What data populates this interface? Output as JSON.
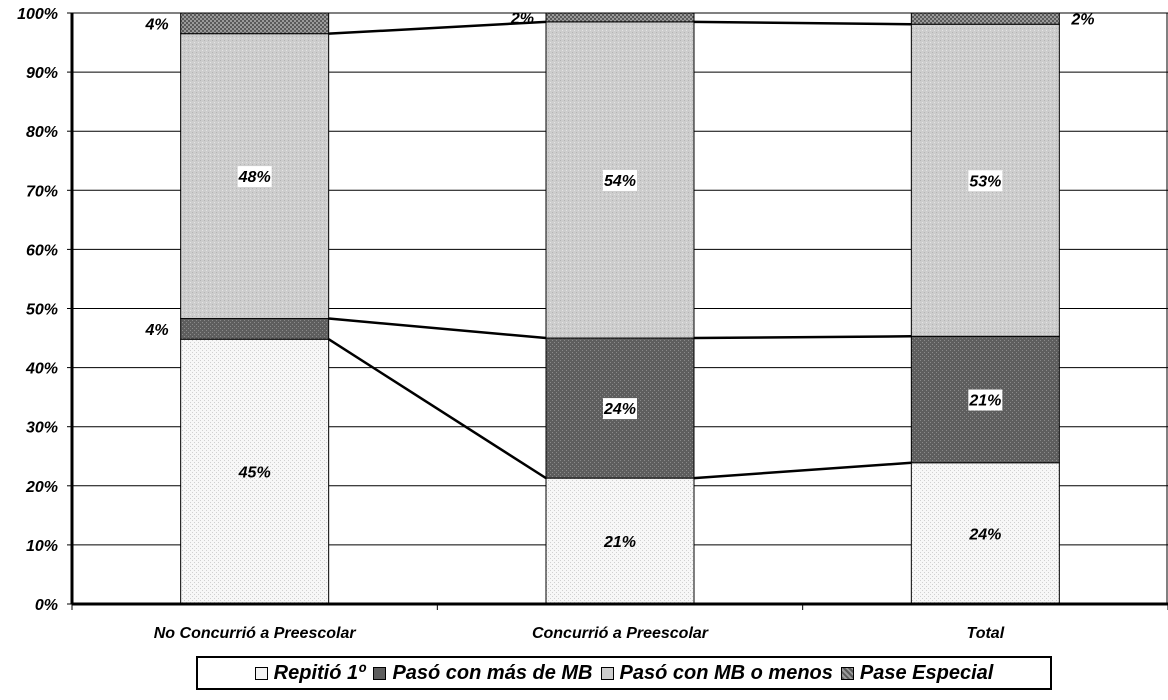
{
  "chart_data": {
    "type": "bar",
    "stacked": true,
    "percent_stacked": true,
    "title": "",
    "xlabel": "",
    "ylabel": "",
    "ylim": [
      0,
      100
    ],
    "yticks": [
      "0%",
      "10%",
      "20%",
      "30%",
      "40%",
      "50%",
      "60%",
      "70%",
      "80%",
      "90%",
      "100%"
    ],
    "categories": [
      "No Concurrió a Preescolar",
      "Concurrió a Preescolar",
      "Total"
    ],
    "series": [
      {
        "name": "Repitió 1º",
        "values": [
          44.8,
          21.3,
          23.9
        ],
        "labels": [
          "45%",
          "21%",
          "24%"
        ],
        "color": "#f4f4f4"
      },
      {
        "name": "Pasó con más de MB",
        "values": [
          3.5,
          23.7,
          21.4
        ],
        "labels": [
          "4%",
          "24%",
          "21%"
        ],
        "color": "#6a6a6a"
      },
      {
        "name": "Pasó con MB o menos",
        "values": [
          48.2,
          53.5,
          52.8
        ],
        "labels": [
          "48%",
          "54%",
          "53%"
        ],
        "color": "#c8c8c8"
      },
      {
        "name": "Pase Especial",
        "values": [
          3.5,
          1.5,
          1.9
        ],
        "labels": [
          "4%",
          "2%",
          "2%"
        ],
        "color": "#8a8a8a"
      }
    ],
    "series_lines": true,
    "grid": true,
    "legend": "bottom"
  }
}
